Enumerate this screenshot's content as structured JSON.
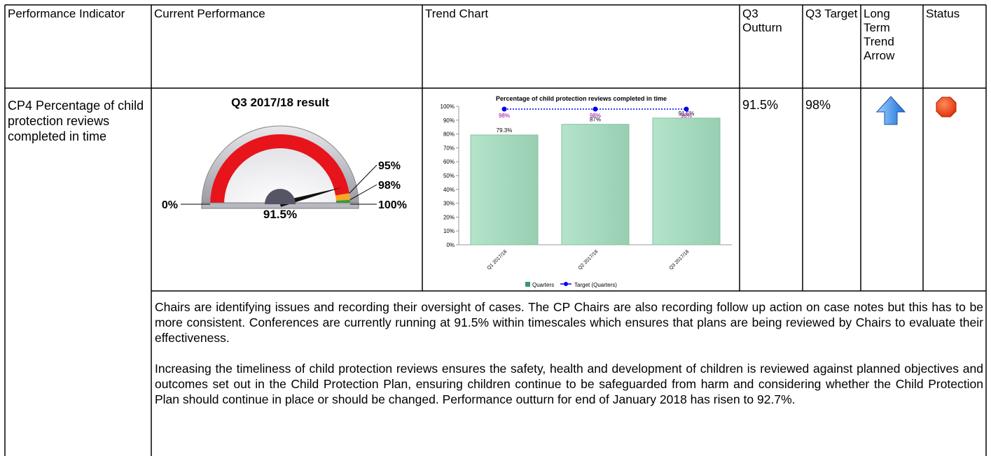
{
  "table": {
    "headers": [
      "Performance Indicator",
      "Current Performance",
      "Trend Chart",
      "Q3 Outturn",
      "Q3 Target",
      "Long Term Trend Arrow",
      "Status"
    ],
    "rows": [
      {
        "indicator": "CP4 Percentage of child protection reviews completed in time",
        "outturn": "91.5%",
        "target": "98%"
      }
    ]
  },
  "chart_data": [
    {
      "type": "gauge",
      "title": "Q3 2017/18 result",
      "value": 91.5,
      "value_label": "91.5%",
      "ylim": [
        0,
        100
      ],
      "bands": [
        {
          "from": 0,
          "to": 95,
          "color": "#e8141b"
        },
        {
          "from": 95,
          "to": 98,
          "color": "#f5a623"
        },
        {
          "from": 98,
          "to": 100,
          "color": "#2e9e3a"
        }
      ],
      "yticks": [
        {
          "value": 0,
          "label": "0%"
        },
        {
          "value": 95,
          "label": "95%"
        },
        {
          "value": 98,
          "label": "98%"
        },
        {
          "value": 100,
          "label": "100%"
        }
      ]
    },
    {
      "type": "bar_line",
      "title": "Percentage of child protection reviews completed in time",
      "categories": [
        "Q1 2017/18",
        "Q2 2017/18",
        "Q3 2017/18"
      ],
      "series": [
        {
          "name": "Quarters",
          "color": "#a6dbbf",
          "values": [
            79.3,
            87,
            91.5
          ],
          "value_labels": [
            "79.3%",
            "87%",
            "91.5%"
          ]
        },
        {
          "name": "Target (Quarters)",
          "color": "#0000ee",
          "values": [
            98,
            98,
            98
          ],
          "value_labels": [
            "98%",
            "98%",
            "98%"
          ]
        }
      ],
      "ylim": [
        0,
        100
      ],
      "yticks": [
        {
          "value": 0,
          "label": "0%"
        },
        {
          "value": 10,
          "label": "10%"
        },
        {
          "value": 20,
          "label": "20%"
        },
        {
          "value": 30,
          "label": "30%"
        },
        {
          "value": 40,
          "label": "40%"
        },
        {
          "value": 50,
          "label": "50%"
        },
        {
          "value": 60,
          "label": "60%"
        },
        {
          "value": 70,
          "label": "70%"
        },
        {
          "value": 80,
          "label": "80%"
        },
        {
          "value": 90,
          "label": "90%"
        },
        {
          "value": 100,
          "label": "100%"
        }
      ]
    }
  ],
  "commentary": [
    "Chairs are identifying issues and recording their oversight of cases.  The CP Chairs are also recording follow up action on case notes but this has to be more consistent.  Conferences are currently running at 91.5% within timescales which ensures that plans are being reviewed by Chairs to evaluate their effectiveness.",
    "Increasing the timeliness of child protection reviews ensures the safety, health and development of children is reviewed against planned objectives and outcomes set out in the Child Protection Plan, ensuring children continue to be safeguarded from harm and considering whether the Child Protection Plan should continue in place or should be changed.  Performance outturn for end of January 2018 has risen to 92.7%."
  ]
}
